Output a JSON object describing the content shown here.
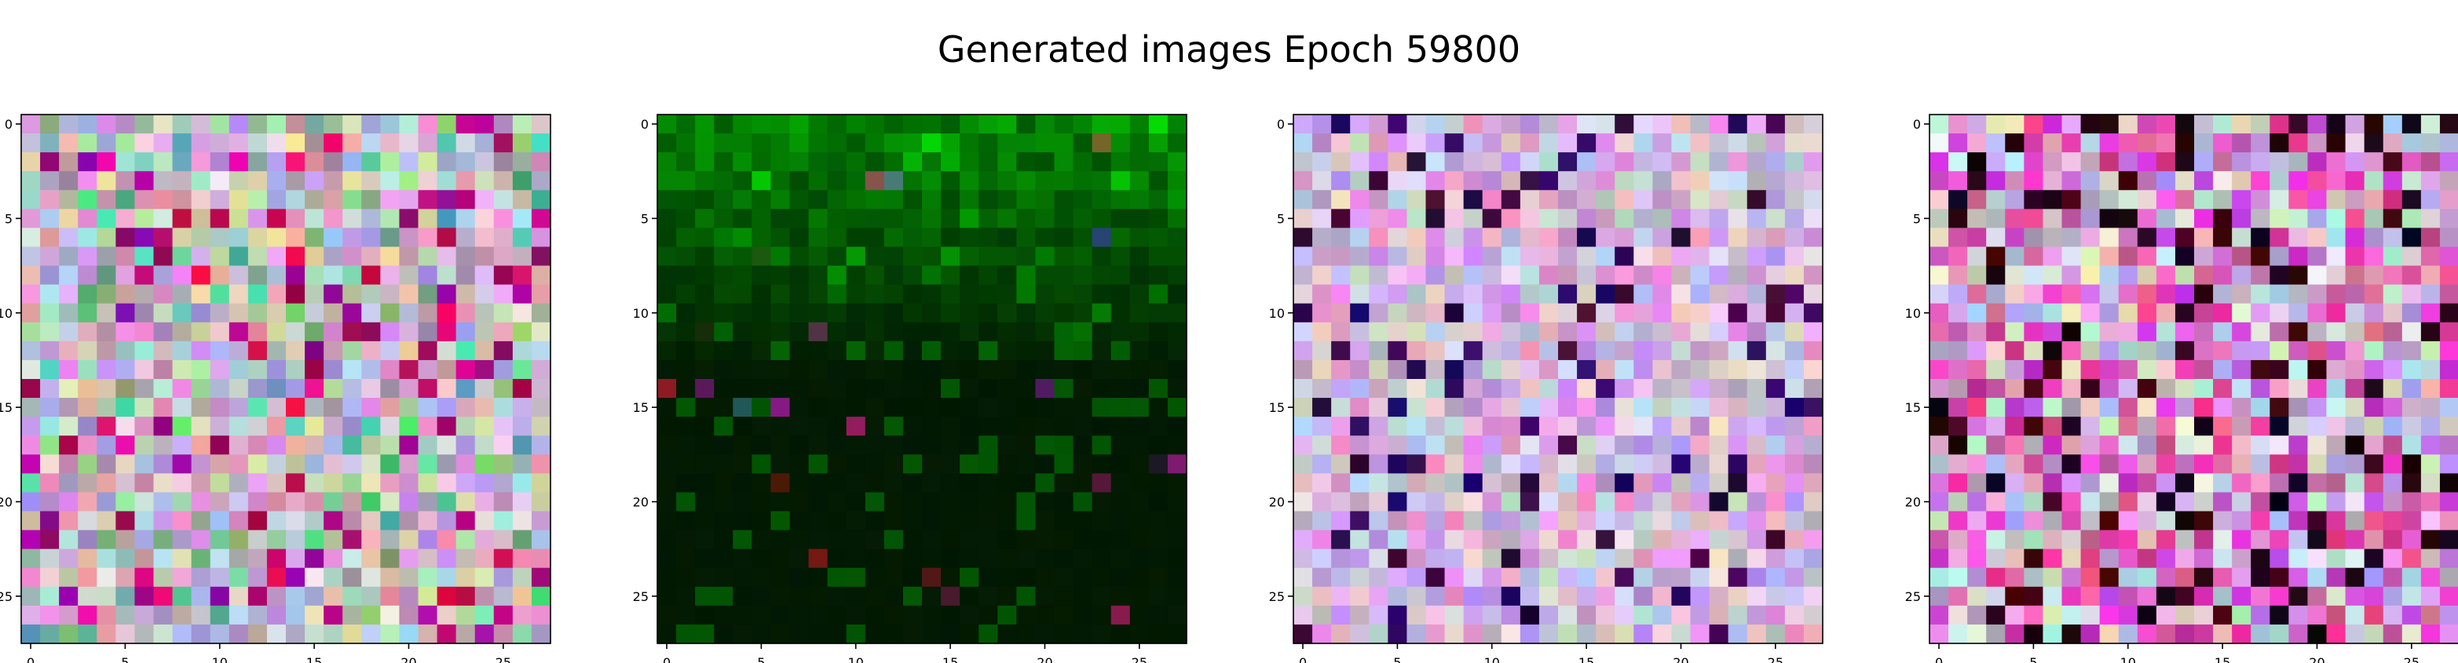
{
  "chart_data": {
    "type": "heatmap",
    "title": "Generated images Epoch 59800",
    "grid": false,
    "panels": [
      {
        "name": "",
        "palette": "mixed",
        "size": 28,
        "xticks": [
          0,
          5,
          10,
          15,
          20,
          25
        ],
        "yticks": [
          0,
          5,
          10,
          15,
          20,
          25
        ],
        "xlim": [
          -0.5,
          27.5
        ],
        "ylim": [
          27.5,
          -0.5
        ]
      },
      {
        "name": "",
        "palette": "green",
        "size": 28,
        "xticks": [
          0,
          5,
          10,
          15,
          20,
          25
        ],
        "yticks": [
          0,
          5,
          10,
          15,
          20,
          25
        ],
        "xlim": [
          -0.5,
          27.5
        ],
        "ylim": [
          27.5,
          -0.5
        ]
      },
      {
        "name": "",
        "palette": "pastel",
        "size": 28,
        "xticks": [
          0,
          5,
          10,
          15,
          20,
          25
        ],
        "yticks": [
          0,
          5,
          10,
          15,
          20,
          25
        ],
        "xlim": [
          -0.5,
          27.5
        ],
        "ylim": [
          27.5,
          -0.5
        ]
      },
      {
        "name": "",
        "palette": "vivid",
        "size": 28,
        "xticks": [
          0,
          5,
          10,
          15,
          20,
          25
        ],
        "yticks": [
          0,
          5,
          10,
          15,
          20,
          25
        ],
        "xlim": [
          -0.5,
          27.5
        ],
        "ylim": [
          27.5,
          -0.5
        ]
      }
    ]
  }
}
